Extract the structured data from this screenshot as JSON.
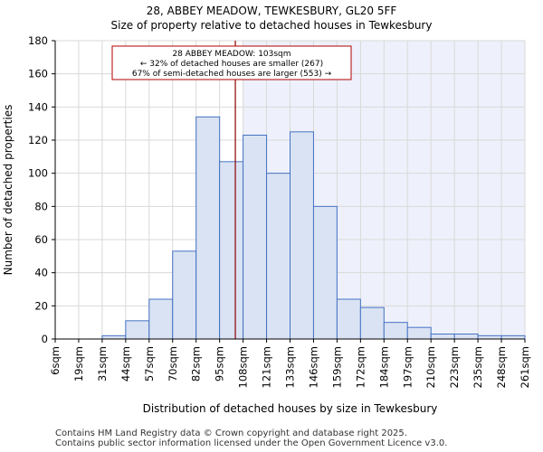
{
  "title": "28, ABBEY MEADOW, TEWKESBURY, GL20 5FF",
  "subtitle": "Size of property relative to detached houses in Tewkesbury",
  "footer": [
    "Contains HM Land Registry data © Crown copyright and database right 2025.",
    "Contains public sector information licensed under the Open Government Licence v3.0."
  ],
  "chart_data": {
    "type": "bar",
    "title": "28, ABBEY MEADOW, TEWKESBURY, GL20 5FF",
    "subtitle": "Size of property relative to detached houses in Tewkesbury",
    "xlabel": "Distribution of detached houses by size in Tewkesbury",
    "ylabel": "Number of detached properties",
    "bin_edges": [
      "6sqm",
      "19sqm",
      "31sqm",
      "44sqm",
      "57sqm",
      "70sqm",
      "82sqm",
      "95sqm",
      "108sqm",
      "121sqm",
      "133sqm",
      "146sqm",
      "159sqm",
      "172sqm",
      "184sqm",
      "197sqm",
      "210sqm",
      "223sqm",
      "235sqm",
      "248sqm",
      "261sqm"
    ],
    "values": [
      0,
      0,
      2,
      11,
      24,
      53,
      134,
      107,
      123,
      100,
      125,
      80,
      24,
      19,
      10,
      7,
      3,
      3,
      2,
      2
    ],
    "ylim": [
      0,
      180
    ],
    "yticks": [
      0,
      20,
      40,
      60,
      80,
      100,
      120,
      140,
      160,
      180
    ],
    "property_size_sqm": 103,
    "marker_position_bins": 7.67,
    "highlight_from_bin": 8,
    "annotation": [
      "28 ABBEY MEADOW: 103sqm",
      "← 32% of detached houses are smaller (267)",
      "67% of semi-detached houses are larger (553) →"
    ],
    "colors": {
      "bar_fill": "#dae3f3",
      "bar_edge": "#4472c4",
      "highlight_bg": "#eef1fb",
      "marker": "#8b0000",
      "annotation_border": "#b00000"
    },
    "grid": true
  }
}
